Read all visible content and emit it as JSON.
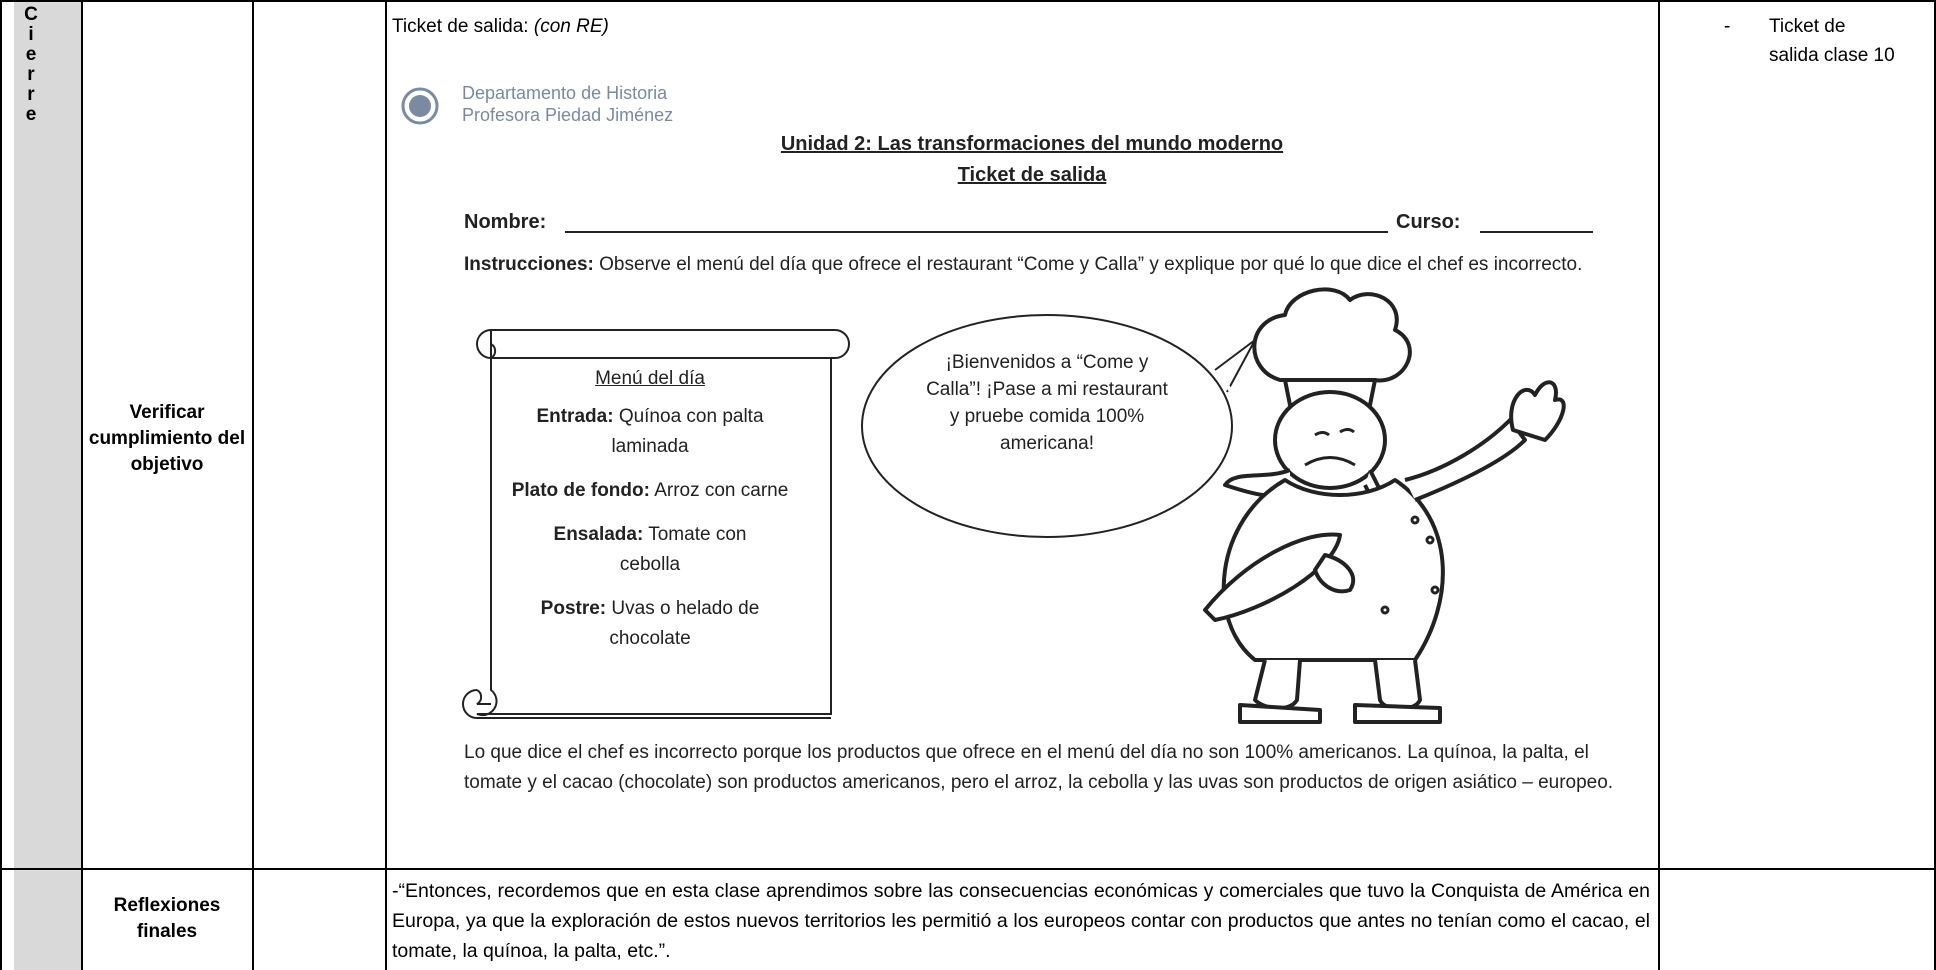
{
  "table": {
    "rows": [
      {
        "phase_letters": [
          "C",
          "i",
          "e",
          "r",
          "r",
          "e"
        ],
        "label": "Verificar cumplimiento del objetivo",
        "content": {
          "ticket_label": "Ticket de salida:",
          "ticket_note": "(con RE)",
          "worksheet": {
            "department": "Departamento de Historia",
            "teacher": "Profesora Piedad Jiménez",
            "unit_title": "Unidad 2: Las transformaciones del mundo moderno",
            "sheet_title": "Ticket de salida",
            "name_label": "Nombre:",
            "course_label": "Curso:",
            "instructions_label": "Instrucciones:",
            "instructions_text": "Observe el menú del día que ofrece el restaurant “Come y Calla” y explique por qué lo que dice el chef es incorrecto.",
            "menu_title": "Menú del día",
            "menu_items": [
              {
                "label": "Entrada:",
                "text": "Quínoa con palta laminada"
              },
              {
                "label": "Plato de fondo:",
                "text": "Arroz con carne"
              },
              {
                "label": "Ensalada:",
                "text": "Tomate con cebolla"
              },
              {
                "label": "Postre:",
                "text": "Uvas o helado de chocolate"
              }
            ],
            "speech": "¡Bienvenidos a “Come y Calla”! ¡Pase a mi restaurant y pruebe comida 100% americana!",
            "answer": "Lo que dice el chef es incorrecto porque los productos que ofrece en el menú del día no son 100% americanos. La quínoa, la palta, el tomate y el cacao (chocolate) son productos americanos, pero el arroz, la cebolla y las uvas son productos de origen asiático – europeo."
          }
        },
        "resources": {
          "dash": "-",
          "text": "Ticket de salida clase 10"
        }
      },
      {
        "label": "Reflexiones finales",
        "content": "-“Entonces, recordemos que en esta clase aprendimos sobre las consecuencias económicas y comerciales que tuvo la Conquista de América en Europa, ya que la exploración de estos nuevos territorios les permitió a los europeos contar con productos que antes no tenían como el cacao, el tomate, la quínoa, la palta, etc.”."
      }
    ]
  }
}
